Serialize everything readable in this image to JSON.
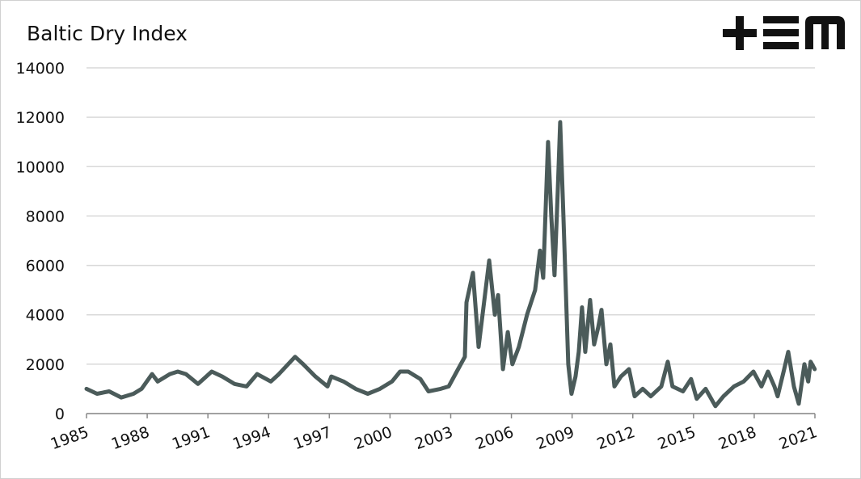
{
  "chart_data": {
    "type": "line",
    "title": "Baltic Dry Index",
    "xlim": [
      1985,
      2021
    ],
    "xticks": [
      1985,
      1988,
      1991,
      1994,
      1997,
      2000,
      2003,
      2006,
      2009,
      2012,
      2015,
      2018,
      2021
    ],
    "ylim": [
      0,
      14000
    ],
    "yticks": [
      0,
      2000,
      4000,
      6000,
      8000,
      10000,
      12000,
      14000
    ],
    "grid": true,
    "series": [
      {
        "color": "#4b5b5a",
        "x": [
          1985.0,
          1985.52,
          1986.12,
          1986.72,
          1987.32,
          1987.72,
          1988.24,
          1988.52,
          1989.12,
          1989.51,
          1989.91,
          1990.51,
          1991.19,
          1991.71,
          1992.31,
          1992.91,
          1993.43,
          1994.11,
          1994.51,
          1995.31,
          1995.71,
          1996.31,
          1996.91,
          1997.1,
          1997.7,
          1998.3,
          1998.9,
          1999.5,
          2000.1,
          2000.5,
          2000.9,
          2001.5,
          2001.9,
          2002.5,
          2002.9,
          2003.3,
          2003.7,
          2003.78,
          2004.1,
          2004.38,
          2004.62,
          2004.9,
          2005.18,
          2005.34,
          2005.58,
          2005.82,
          2006.05,
          2006.37,
          2006.77,
          2007.17,
          2007.41,
          2007.57,
          2007.81,
          2007.97,
          2008.13,
          2008.29,
          2008.41,
          2008.57,
          2008.81,
          2008.97,
          2009.17,
          2009.33,
          2009.49,
          2009.65,
          2009.89,
          2010.09,
          2010.29,
          2010.45,
          2010.69,
          2010.89,
          2011.09,
          2011.41,
          2011.81,
          2012.09,
          2012.49,
          2012.89,
          2013.41,
          2013.73,
          2013.96,
          2014.48,
          2014.88,
          2015.16,
          2015.6,
          2016.08,
          2016.48,
          2017.0,
          2017.48,
          2017.96,
          2018.36,
          2018.68,
          2019.0,
          2019.16,
          2019.48,
          2019.68,
          2019.96,
          2020.2,
          2020.48,
          2020.67,
          2020.79,
          2020.99
        ],
        "values": [
          1000,
          800,
          900,
          650,
          800,
          1000,
          1600,
          1300,
          1600,
          1700,
          1600,
          1200,
          1700,
          1500,
          1200,
          1100,
          1600,
          1300,
          1600,
          2300,
          2000,
          1500,
          1100,
          1500,
          1300,
          1000,
          800,
          1000,
          1300,
          1700,
          1700,
          1400,
          900,
          1000,
          1100,
          1700,
          2300,
          4500,
          5700,
          2700,
          4300,
          6200,
          4000,
          4800,
          1800,
          3300,
          2000,
          2700,
          4000,
          5000,
          6600,
          5500,
          11000,
          8000,
          5600,
          9000,
          11800,
          8000,
          2000,
          800,
          1500,
          2500,
          4300,
          2500,
          4600,
          2800,
          3500,
          4200,
          2000,
          2800,
          1100,
          1500,
          1800,
          700,
          1000,
          700,
          1100,
          2100,
          1100,
          900,
          1400,
          600,
          1000,
          300,
          700,
          1100,
          1300,
          1700,
          1100,
          1700,
          1100,
          700,
          1800,
          2500,
          1100,
          400,
          2000,
          1300,
          2100,
          1800
        ]
      }
    ]
  }
}
